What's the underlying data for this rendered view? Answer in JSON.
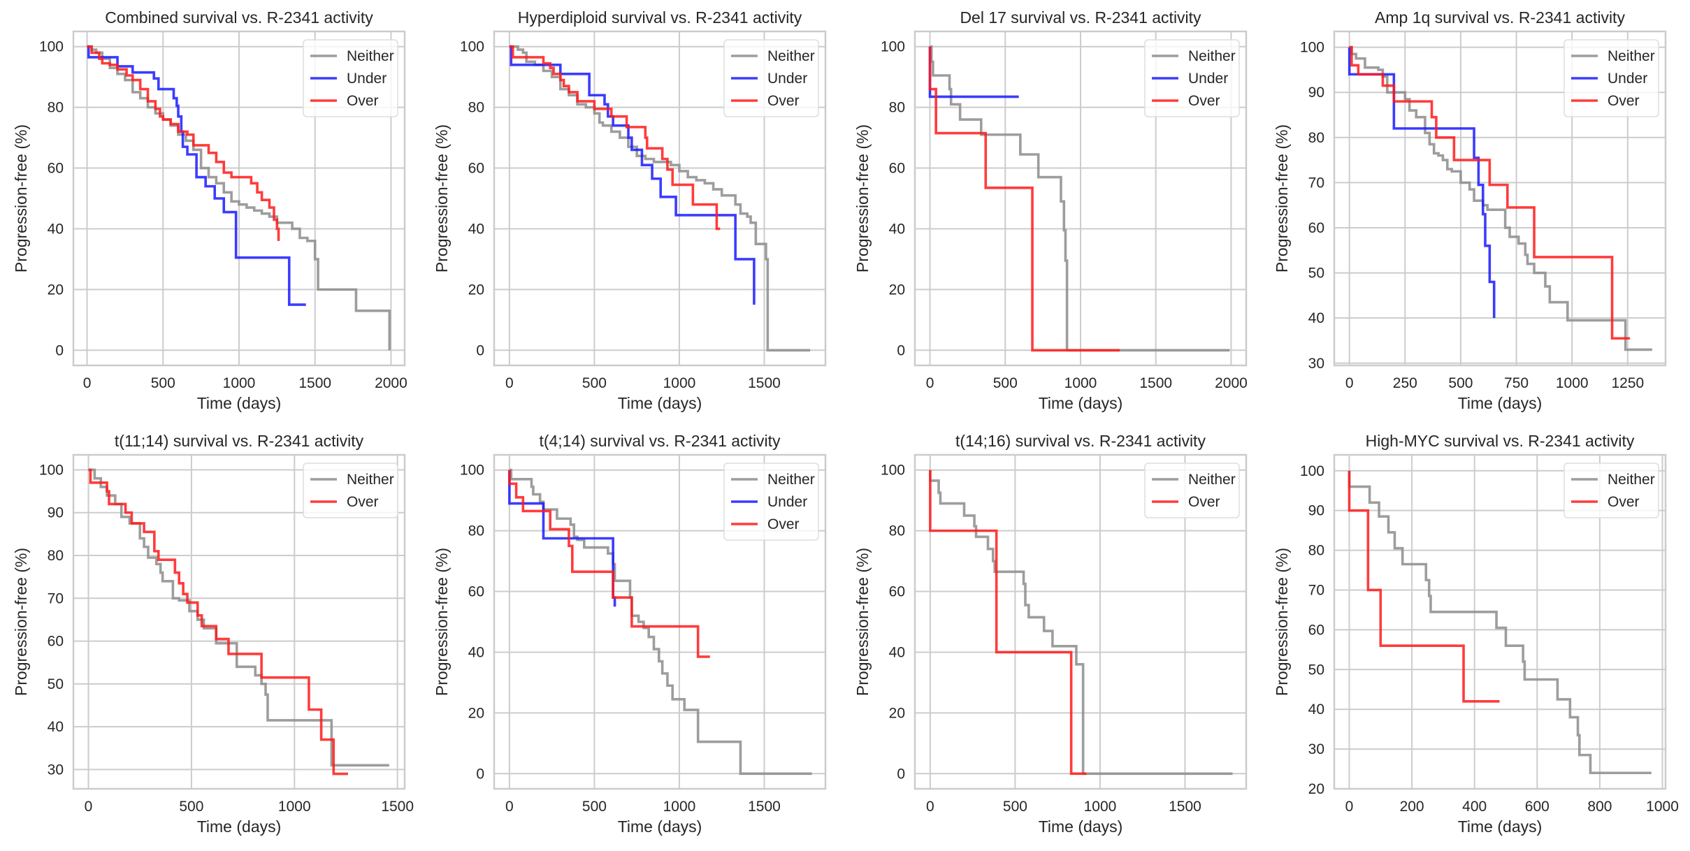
{
  "colors": {
    "Neither": "#8c8c8c",
    "Under": "#1a1aff",
    "Over": "#ff1a1a"
  },
  "chart_data": [
    {
      "type": "line",
      "step": true,
      "title": "Combined survival vs. R-2341 activity",
      "xlabel": "Time (days)",
      "ylabel": "Progression-free (%)",
      "xlim": [
        -90,
        2090
      ],
      "ylim": [
        -5,
        105
      ],
      "xticks": [
        0,
        500,
        1000,
        1500,
        2000
      ],
      "yticks": [
        0,
        20,
        40,
        60,
        80,
        100
      ],
      "grid": true,
      "legend": "top-right",
      "series": [
        {
          "name": "Neither",
          "x": [
            0,
            30,
            60,
            100,
            150,
            200,
            250,
            300,
            350,
            400,
            450,
            500,
            550,
            600,
            650,
            700,
            750,
            800,
            850,
            900,
            950,
            1000,
            1050,
            1100,
            1150,
            1200,
            1250,
            1300,
            1350,
            1400,
            1450,
            1500,
            1520,
            1760,
            1770,
            1990
          ],
          "y": [
            100,
            99,
            98,
            96,
            93,
            91,
            89,
            85,
            83,
            80,
            78,
            76,
            74,
            71,
            69,
            66,
            60,
            57,
            55,
            52,
            49,
            48,
            47,
            46,
            45,
            44,
            42,
            42,
            40,
            37,
            36,
            30,
            20,
            20,
            13,
            0
          ]
        },
        {
          "name": "Under",
          "x": [
            0,
            10,
            200,
            300,
            440,
            470,
            570,
            590,
            600,
            620,
            630,
            660,
            720,
            780,
            840,
            900,
            980,
            1330,
            1440
          ],
          "y": [
            100,
            96.5,
            93.5,
            91.5,
            89.5,
            86,
            83,
            80.5,
            77,
            72,
            67,
            64.5,
            57,
            54,
            50,
            45.5,
            30.5,
            15,
            15
          ]
        },
        {
          "name": "Over",
          "x": [
            0,
            30,
            80,
            100,
            150,
            200,
            260,
            300,
            350,
            400,
            450,
            480,
            500,
            550,
            600,
            660,
            700,
            800,
            850,
            900,
            950,
            1000,
            1080,
            1120,
            1150,
            1200,
            1230,
            1250,
            1260
          ],
          "y": [
            100,
            98,
            96,
            94.5,
            94,
            92.5,
            90.5,
            89,
            86,
            82,
            79.5,
            77,
            76,
            74.5,
            72,
            71,
            67.5,
            65,
            62,
            58.5,
            57,
            57,
            55,
            52,
            49.5,
            47,
            43,
            40,
            36
          ]
        }
      ]
    },
    {
      "type": "line",
      "step": true,
      "title": "Hyperdiploid survival vs. R-2341 activity",
      "xlabel": "Time (days)",
      "ylabel": "Progression-free (%)",
      "xlim": [
        -90,
        1860
      ],
      "ylim": [
        -5,
        105
      ],
      "xticks": [
        0,
        500,
        1000,
        1500
      ],
      "yticks": [
        0,
        20,
        40,
        60,
        80,
        100
      ],
      "grid": true,
      "legend": "top-right",
      "series": [
        {
          "name": "Neither",
          "x": [
            0,
            50,
            80,
            100,
            150,
            200,
            250,
            300,
            350,
            400,
            450,
            500,
            530,
            550,
            600,
            650,
            700,
            750,
            800,
            850,
            900,
            950,
            1000,
            1050,
            1100,
            1150,
            1200,
            1250,
            1300,
            1330,
            1360,
            1400,
            1420,
            1450,
            1510,
            1520,
            1770
          ],
          "y": [
            100,
            99,
            98,
            95,
            94,
            92,
            90,
            86,
            84,
            81,
            80,
            78,
            75,
            74,
            72,
            70,
            67,
            64,
            63,
            62,
            62,
            61,
            59,
            57,
            56,
            55,
            53,
            51,
            51,
            48,
            45,
            44,
            42,
            35,
            30,
            0,
            0
          ]
        },
        {
          "name": "Under",
          "x": [
            0,
            10,
            300,
            470,
            560,
            580,
            610,
            700,
            720,
            780,
            840,
            890,
            980,
            1330,
            1440
          ],
          "y": [
            100,
            94,
            91,
            84,
            81,
            77,
            74,
            70,
            66,
            61,
            56.5,
            50.5,
            44.5,
            30,
            15
          ]
        },
        {
          "name": "Over",
          "x": [
            0,
            20,
            200,
            240,
            260,
            300,
            320,
            350,
            400,
            500,
            600,
            690,
            800,
            810,
            900,
            930,
            960,
            1080,
            1220,
            1240
          ],
          "y": [
            100,
            96.5,
            94.5,
            93,
            91,
            89,
            87,
            85,
            82,
            79.5,
            77,
            73.5,
            70,
            66.5,
            63,
            59.5,
            54.5,
            48,
            40,
            40
          ]
        }
      ]
    },
    {
      "type": "line",
      "step": true,
      "title": "Del 17 survival vs. R-2341 activity",
      "xlabel": "Time (days)",
      "ylabel": "Progression-free (%)",
      "xlim": [
        -100,
        2100
      ],
      "ylim": [
        -5,
        105
      ],
      "xticks": [
        0,
        500,
        1000,
        1500,
        2000
      ],
      "yticks": [
        0,
        20,
        40,
        60,
        80,
        100
      ],
      "grid": true,
      "legend": "top-right",
      "series": [
        {
          "name": "Neither",
          "x": [
            0,
            10,
            20,
            130,
            140,
            200,
            340,
            600,
            720,
            870,
            890,
            900,
            910,
            1990
          ],
          "y": [
            100,
            95,
            90.5,
            86,
            81,
            76,
            71,
            64.5,
            57,
            49,
            39.5,
            29.5,
            0,
            0
          ]
        },
        {
          "name": "Under",
          "x": [
            0,
            0,
            590
          ],
          "y": [
            100,
            83.5,
            83.5
          ]
        },
        {
          "name": "Over",
          "x": [
            0,
            0,
            40,
            370,
            680,
            1260
          ],
          "y": [
            100,
            86,
            71.5,
            53.5,
            0,
            0
          ]
        }
      ]
    },
    {
      "type": "line",
      "step": true,
      "title": "Amp 1q survival vs. R-2341 activity",
      "xlabel": "Time (days)",
      "ylabel": "Progression-free (%)",
      "xlim": [
        -68,
        1420
      ],
      "ylim": [
        29.5,
        103.5
      ],
      "xticks": [
        0,
        250,
        500,
        750,
        1000,
        1250
      ],
      "yticks": [
        30,
        40,
        50,
        60,
        70,
        80,
        90,
        100
      ],
      "grid": true,
      "legend": "top-right",
      "series": [
        {
          "name": "Neither",
          "x": [
            0,
            10,
            30,
            70,
            130,
            150,
            170,
            250,
            270,
            300,
            340,
            360,
            380,
            400,
            420,
            440,
            460,
            500,
            540,
            560,
            600,
            620,
            700,
            720,
            760,
            790,
            800,
            830,
            880,
            900,
            980,
            1240,
            1360
          ],
          "y": [
            100,
            98.5,
            97.5,
            95.5,
            95,
            93.5,
            90,
            88.5,
            86,
            84.5,
            81,
            78.5,
            76.5,
            76,
            75,
            73,
            72.5,
            70,
            68.5,
            66,
            65,
            64,
            60,
            58,
            56.5,
            54,
            52,
            50,
            47,
            43.5,
            39.5,
            33,
            33
          ]
        },
        {
          "name": "Under",
          "x": [
            0,
            0,
            200,
            560,
            580,
            600,
            610,
            630,
            650
          ],
          "y": [
            100,
            94,
            82,
            75.5,
            69.5,
            63,
            56,
            48,
            40
          ]
        },
        {
          "name": "Over",
          "x": [
            0,
            10,
            40,
            150,
            200,
            370,
            390,
            470,
            630,
            710,
            830,
            1180,
            1260
          ],
          "y": [
            100,
            96,
            94,
            91.5,
            88,
            84.5,
            80,
            75,
            69.5,
            64.5,
            53.5,
            35.5,
            35.5
          ]
        }
      ]
    },
    {
      "type": "line",
      "step": true,
      "title": "t(11;14) survival vs. R-2341 activity",
      "xlabel": "Time (days)",
      "ylabel": "Progression-free (%)",
      "xlim": [
        -73,
        1535
      ],
      "ylim": [
        25.5,
        103.5
      ],
      "xticks": [
        0,
        500,
        1000,
        1500
      ],
      "yticks": [
        30,
        40,
        50,
        60,
        70,
        80,
        90,
        100
      ],
      "grid": true,
      "legend": "top-right",
      "series": [
        {
          "name": "Neither",
          "x": [
            0,
            30,
            60,
            90,
            130,
            160,
            200,
            250,
            270,
            290,
            330,
            350,
            360,
            410,
            440,
            490,
            530,
            560,
            620,
            720,
            810,
            840,
            860,
            870,
            1180,
            1460
          ],
          "y": [
            100,
            98,
            96,
            94,
            92,
            89,
            87.5,
            84,
            82,
            79.5,
            78,
            76,
            74,
            70,
            69.5,
            67,
            65,
            63,
            59.5,
            54,
            52,
            50,
            47.5,
            41.5,
            31,
            31
          ]
        },
        {
          "name": "Over",
          "x": [
            0,
            10,
            90,
            100,
            180,
            210,
            270,
            320,
            340,
            420,
            440,
            460,
            480,
            530,
            550,
            620,
            680,
            840,
            1070,
            1130,
            1190,
            1260
          ],
          "y": [
            100,
            97,
            95,
            92,
            90,
            87.5,
            85.5,
            81,
            79,
            76,
            73.5,
            71,
            69,
            66,
            63.5,
            60.5,
            57,
            51.5,
            44,
            37,
            29,
            29
          ]
        }
      ]
    },
    {
      "type": "line",
      "step": true,
      "title": "t(4;14) survival vs. R-2341 activity",
      "xlabel": "Time (days)",
      "ylabel": "Progression-free (%)",
      "xlim": [
        -90,
        1860
      ],
      "ylim": [
        -5,
        105
      ],
      "xticks": [
        0,
        500,
        1000,
        1500
      ],
      "yticks": [
        0,
        20,
        40,
        60,
        80,
        100
      ],
      "grid": true,
      "legend": "top-right",
      "series": [
        {
          "name": "Neither",
          "x": [
            0,
            10,
            130,
            140,
            180,
            200,
            280,
            360,
            380,
            400,
            440,
            580,
            610,
            620,
            710,
            720,
            760,
            790,
            820,
            850,
            880,
            900,
            930,
            960,
            1030,
            1110,
            1360,
            1780
          ],
          "y": [
            100,
            97,
            94.5,
            92,
            89.5,
            87,
            84,
            82,
            78,
            77,
            74.5,
            72.5,
            69,
            63.5,
            58,
            52,
            50,
            48,
            45,
            41,
            37,
            33,
            29,
            24.5,
            21,
            10.5,
            0,
            0
          ]
        },
        {
          "name": "Under",
          "x": [
            0,
            0,
            200,
            610,
            620
          ],
          "y": [
            100,
            89,
            77.5,
            58,
            55
          ]
        },
        {
          "name": "Over",
          "x": [
            0,
            0,
            40,
            80,
            240,
            350,
            370,
            610,
            720,
            1110,
            1180
          ],
          "y": [
            100,
            95.5,
            91,
            86.5,
            80.5,
            75,
            66.5,
            58,
            48.5,
            38.5,
            38.5
          ]
        }
      ]
    },
    {
      "type": "line",
      "step": true,
      "title": "t(14;16) survival vs. R-2341 activity",
      "xlabel": "Time (days)",
      "ylabel": "Progression-free (%)",
      "xlim": [
        -90,
        1860
      ],
      "ylim": [
        -5,
        105
      ],
      "xticks": [
        0,
        500,
        1000,
        1500
      ],
      "yticks": [
        0,
        20,
        40,
        60,
        80,
        100
      ],
      "grid": true,
      "legend": "top-right",
      "series": [
        {
          "name": "Neither",
          "x": [
            0,
            0,
            50,
            60,
            200,
            260,
            270,
            340,
            370,
            380,
            550,
            560,
            580,
            670,
            720,
            860,
            900,
            910,
            1780
          ],
          "y": [
            100,
            96.5,
            92.5,
            89,
            85,
            81.5,
            78,
            74,
            70,
            66.5,
            62.5,
            55.5,
            51.5,
            47,
            42,
            36,
            0,
            0,
            0
          ]
        },
        {
          "name": "Over",
          "x": [
            0,
            0,
            390,
            830,
            920
          ],
          "y": [
            100,
            80,
            40,
            0,
            0
          ]
        }
      ]
    },
    {
      "type": "line",
      "step": true,
      "title": "High-MYC survival vs. R-2341 activity",
      "xlabel": "Time (days)",
      "ylabel": "Progression-free (%)",
      "xlim": [
        -48,
        1010
      ],
      "ylim": [
        20,
        104
      ],
      "xticks": [
        0,
        200,
        400,
        600,
        800,
        1000
      ],
      "yticks": [
        20,
        30,
        40,
        50,
        60,
        70,
        80,
        90,
        100
      ],
      "grid": true,
      "legend": "top-right",
      "series": [
        {
          "name": "Neither",
          "x": [
            0,
            0,
            65,
            95,
            125,
            145,
            170,
            245,
            255,
            260,
            470,
            500,
            555,
            560,
            665,
            705,
            730,
            735,
            770,
            965
          ],
          "y": [
            100,
            96,
            92,
            88.5,
            84.5,
            80.5,
            76.5,
            72.5,
            68.5,
            64.5,
            60.5,
            56,
            52,
            47.5,
            42.5,
            38,
            33.5,
            28.5,
            24,
            24
          ]
        },
        {
          "name": "Over",
          "x": [
            0,
            0,
            60,
            100,
            365,
            480
          ],
          "y": [
            100,
            90,
            70,
            56,
            42,
            42
          ]
        }
      ]
    }
  ]
}
